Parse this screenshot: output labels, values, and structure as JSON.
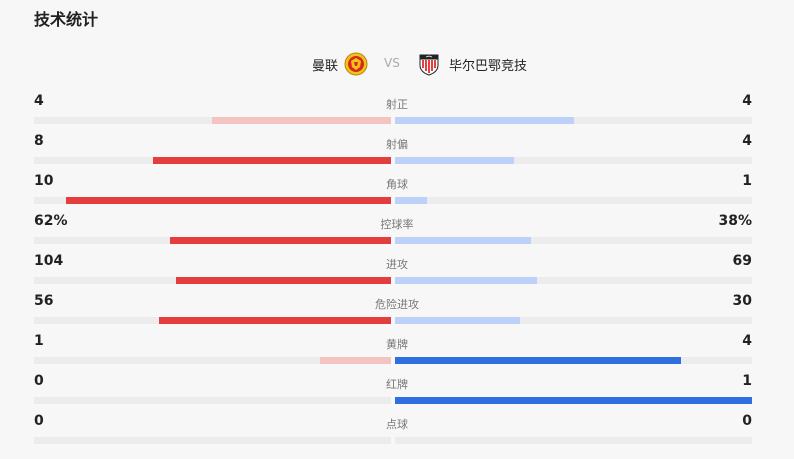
{
  "title": "技术统计",
  "teams": {
    "home": {
      "name": "曼联",
      "logo": "manchester-united-crest"
    },
    "vs": "VS",
    "away": {
      "name": "毕尔巴鄂竞技",
      "logo": "athletic-bilbao-crest"
    }
  },
  "colors": {
    "home_strong": "#e43d3d",
    "home_weak": "#f6c3c3",
    "away_strong": "#2f6fe0",
    "away_weak": "#bcd0f8",
    "track": "#ececec"
  },
  "stats": [
    {
      "label": "射正",
      "home": "4",
      "away": "4",
      "home_ratio": 0.5,
      "away_ratio": 0.5,
      "leader": "none"
    },
    {
      "label": "射偏",
      "home": "8",
      "away": "4",
      "home_ratio": 0.667,
      "away_ratio": 0.333,
      "leader": "home"
    },
    {
      "label": "角球",
      "home": "10",
      "away": "1",
      "home_ratio": 0.909,
      "away_ratio": 0.091,
      "leader": "home"
    },
    {
      "label": "控球率",
      "home": "62%",
      "away": "38%",
      "home_ratio": 0.62,
      "away_ratio": 0.38,
      "leader": "home"
    },
    {
      "label": "进攻",
      "home": "104",
      "away": "69",
      "home_ratio": 0.601,
      "away_ratio": 0.399,
      "leader": "home"
    },
    {
      "label": "危险进攻",
      "home": "56",
      "away": "30",
      "home_ratio": 0.651,
      "away_ratio": 0.349,
      "leader": "home"
    },
    {
      "label": "黄牌",
      "home": "1",
      "away": "4",
      "home_ratio": 0.2,
      "away_ratio": 0.8,
      "leader": "away"
    },
    {
      "label": "红牌",
      "home": "0",
      "away": "1",
      "home_ratio": 0.0,
      "away_ratio": 1.0,
      "leader": "away"
    },
    {
      "label": "点球",
      "home": "0",
      "away": "0",
      "home_ratio": 0.0,
      "away_ratio": 0.0,
      "leader": "none"
    }
  ]
}
